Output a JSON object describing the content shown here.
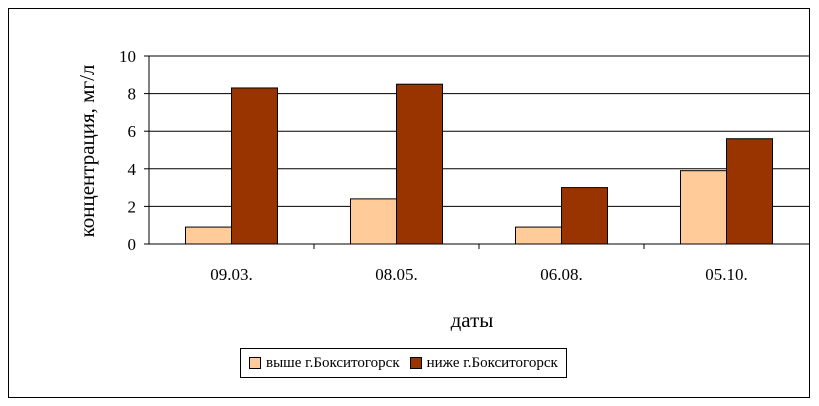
{
  "chart_data": {
    "type": "bar",
    "categories": [
      "09.03.",
      "08.05.",
      "06.08.",
      "05.10."
    ],
    "series": [
      {
        "name": "выше г.Бокситогорск",
        "values": [
          0.9,
          2.4,
          0.9,
          3.9
        ],
        "color": "#FFCC99"
      },
      {
        "name": "ниже г.Бокситогорск",
        "values": [
          8.3,
          8.5,
          3.0,
          5.6
        ],
        "color": "#993300"
      }
    ],
    "xlabel": "даты",
    "ylabel": "концентрация, мг/л",
    "ylim": [
      0,
      10
    ],
    "yticks": [
      0,
      2,
      4,
      6,
      8,
      10
    ],
    "grid": true,
    "legend": "bottom"
  }
}
